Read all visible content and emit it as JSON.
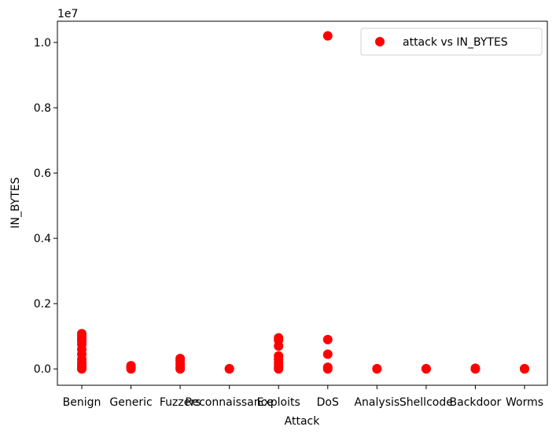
{
  "chart_data": {
    "type": "scatter",
    "xlabel": "Attack",
    "ylabel": "IN_BYTES",
    "offset_label": "1e7",
    "categories": [
      "Benign",
      "Generic",
      "Fuzzers",
      "Reconnaissance",
      "Exploits",
      "DoS",
      "Analysis",
      "Shellcode",
      "Backdoor",
      "Worms"
    ],
    "yticks": [
      0.0,
      0.2,
      0.4,
      0.6,
      0.8,
      1.0
    ],
    "ytick_labels": [
      "0.0",
      "0.2",
      "0.4",
      "0.6",
      "0.8",
      "1.0"
    ],
    "ylim": [
      -0.05,
      1.065
    ],
    "grid": false,
    "legend_position": "top-right",
    "colors": {
      "marker": "#ff0000"
    },
    "series": [
      {
        "name": "attack vs IN_BYTES",
        "points": [
          {
            "x": "Benign",
            "y": 0.0
          },
          {
            "x": "Benign",
            "y": 0.005
          },
          {
            "x": "Benign",
            "y": 0.012
          },
          {
            "x": "Benign",
            "y": 0.02
          },
          {
            "x": "Benign",
            "y": 0.03
          },
          {
            "x": "Benign",
            "y": 0.045
          },
          {
            "x": "Benign",
            "y": 0.06
          },
          {
            "x": "Benign",
            "y": 0.075
          },
          {
            "x": "Benign",
            "y": 0.085
          },
          {
            "x": "Benign",
            "y": 0.092
          },
          {
            "x": "Benign",
            "y": 0.1
          },
          {
            "x": "Benign",
            "y": 0.108
          },
          {
            "x": "Generic",
            "y": 0.0
          },
          {
            "x": "Generic",
            "y": 0.005
          },
          {
            "x": "Generic",
            "y": 0.01
          },
          {
            "x": "Fuzzers",
            "y": 0.0
          },
          {
            "x": "Fuzzers",
            "y": 0.005
          },
          {
            "x": "Fuzzers",
            "y": 0.015
          },
          {
            "x": "Fuzzers",
            "y": 0.025
          },
          {
            "x": "Fuzzers",
            "y": 0.032
          },
          {
            "x": "Reconnaissance",
            "y": 0.0
          },
          {
            "x": "Reconnaissance",
            "y": 0.001
          },
          {
            "x": "Exploits",
            "y": 0.0
          },
          {
            "x": "Exploits",
            "y": 0.005
          },
          {
            "x": "Exploits",
            "y": 0.012
          },
          {
            "x": "Exploits",
            "y": 0.02
          },
          {
            "x": "Exploits",
            "y": 0.03
          },
          {
            "x": "Exploits",
            "y": 0.04
          },
          {
            "x": "Exploits",
            "y": 0.07
          },
          {
            "x": "Exploits",
            "y": 0.088
          },
          {
            "x": "Exploits",
            "y": 0.095
          },
          {
            "x": "DoS",
            "y": 0.0
          },
          {
            "x": "DoS",
            "y": 0.005
          },
          {
            "x": "DoS",
            "y": 0.045
          },
          {
            "x": "DoS",
            "y": 0.09
          },
          {
            "x": "DoS",
            "y": 1.02
          },
          {
            "x": "Analysis",
            "y": 0.0
          },
          {
            "x": "Analysis",
            "y": 0.001
          },
          {
            "x": "Shellcode",
            "y": 0.0
          },
          {
            "x": "Shellcode",
            "y": 0.001
          },
          {
            "x": "Backdoor",
            "y": 0.0
          },
          {
            "x": "Backdoor",
            "y": 0.002
          },
          {
            "x": "Worms",
            "y": 0.0
          },
          {
            "x": "Worms",
            "y": 0.001
          }
        ]
      }
    ]
  }
}
